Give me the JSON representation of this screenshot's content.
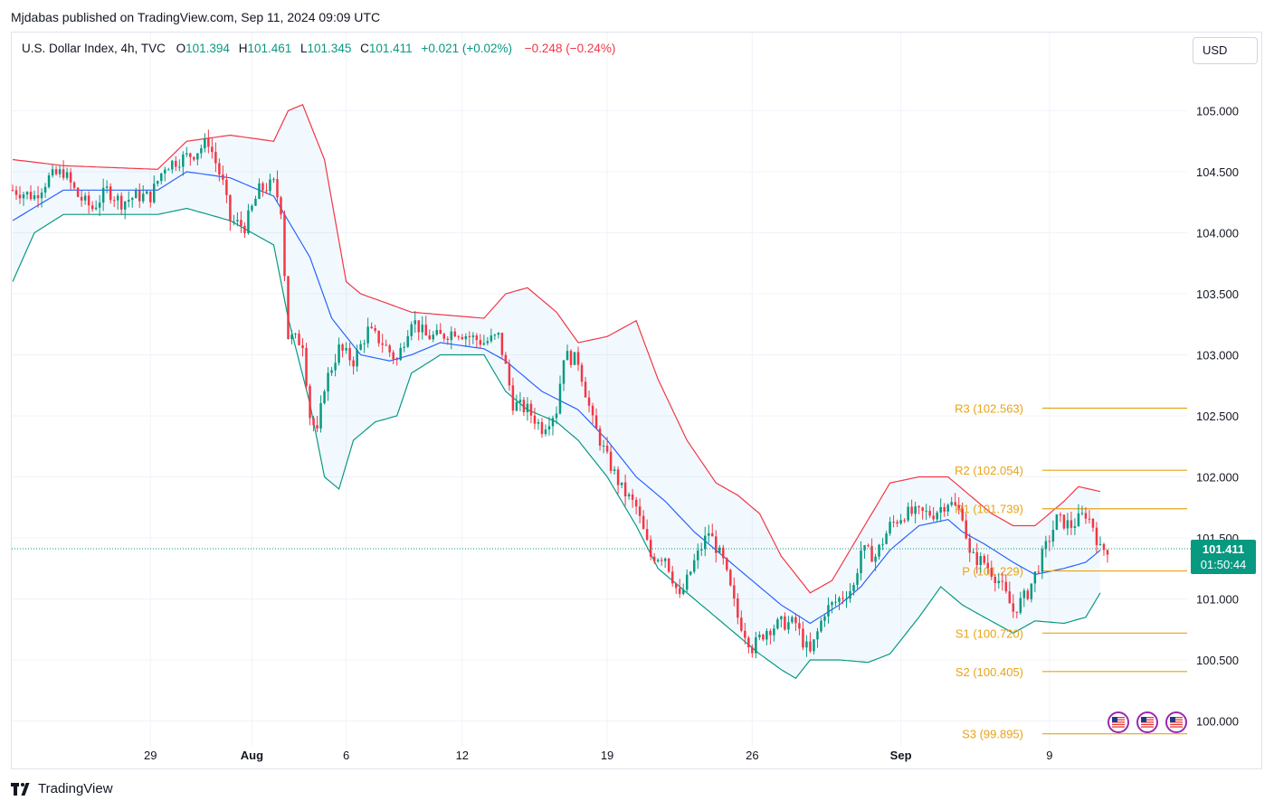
{
  "header": {
    "published_text": "Mjdabas published on TradingView.com, Sep 11, 2024 09:09 UTC"
  },
  "legend": {
    "symbol": "U.S. Dollar Index, 4h, TVC",
    "o_label": "O",
    "o_value": "101.394",
    "h_label": "H",
    "h_value": "101.461",
    "l_label": "L",
    "l_value": "101.345",
    "c_label": "C",
    "c_value": "101.411",
    "change": "+0.021 (+0.02%)",
    "change_from_ref": "−0.248 (−0.24%)"
  },
  "currency_button": "USD",
  "brand": "TradingView",
  "chart_data": {
    "type": "candlestick",
    "interval": "4h",
    "ylim": [
      99.85,
      105.6
    ],
    "y_ticks": [
      100.0,
      100.5,
      101.0,
      101.5,
      102.0,
      102.5,
      103.0,
      103.5,
      104.0,
      104.5,
      105.0
    ],
    "y_tick_labels": [
      "100.000",
      "100.500",
      "101.000",
      "101.500",
      "102.000",
      "102.500",
      "103.000",
      "103.500",
      "104.000",
      "104.500",
      "105.000"
    ],
    "x_ticks": [
      {
        "label": "29",
        "bar": 38
      },
      {
        "label": "Aug",
        "bar": 66
      },
      {
        "label": "6",
        "bar": 92
      },
      {
        "label": "12",
        "bar": 124
      },
      {
        "label": "19",
        "bar": 164
      },
      {
        "label": "26",
        "bar": 204
      },
      {
        "label": "Sep",
        "bar": 245
      },
      {
        "label": "9",
        "bar": 286
      }
    ],
    "bars_total": 306,
    "last_price": {
      "value": 101.411,
      "label": "101.411",
      "countdown": "01:50:44",
      "color": "#089981"
    },
    "up_color": "#089981",
    "down_color": "#f23645",
    "close_path": [
      [
        0,
        104.35
      ],
      [
        6,
        104.3
      ],
      [
        10,
        104.45
      ],
      [
        14,
        104.5
      ],
      [
        18,
        104.3
      ],
      [
        22,
        104.2
      ],
      [
        26,
        104.35
      ],
      [
        30,
        104.25
      ],
      [
        34,
        104.3
      ],
      [
        38,
        104.3
      ],
      [
        42,
        104.55
      ],
      [
        46,
        104.6
      ],
      [
        50,
        104.65
      ],
      [
        54,
        104.75
      ],
      [
        58,
        104.4
      ],
      [
        60,
        104.1
      ],
      [
        64,
        104.05
      ],
      [
        68,
        104.35
      ],
      [
        72,
        104.4
      ],
      [
        74,
        104.2
      ],
      [
        76,
        103.15
      ],
      [
        80,
        103.1
      ],
      [
        82,
        102.5
      ],
      [
        84,
        102.35
      ],
      [
        86,
        102.75
      ],
      [
        90,
        103.05
      ],
      [
        94,
        102.95
      ],
      [
        98,
        103.2
      ],
      [
        102,
        103.1
      ],
      [
        106,
        102.95
      ],
      [
        110,
        103.3
      ],
      [
        114,
        103.15
      ],
      [
        118,
        103.15
      ],
      [
        122,
        103.2
      ],
      [
        126,
        103.15
      ],
      [
        130,
        103.1
      ],
      [
        134,
        103.15
      ],
      [
        136,
        102.9
      ],
      [
        138,
        102.6
      ],
      [
        142,
        102.55
      ],
      [
        146,
        102.4
      ],
      [
        150,
        102.55
      ],
      [
        152,
        103.0
      ],
      [
        156,
        102.95
      ],
      [
        160,
        102.45
      ],
      [
        164,
        102.15
      ],
      [
        168,
        101.9
      ],
      [
        172,
        101.75
      ],
      [
        176,
        101.35
      ],
      [
        180,
        101.35
      ],
      [
        184,
        101.0
      ],
      [
        188,
        101.3
      ],
      [
        192,
        101.55
      ],
      [
        196,
        101.3
      ],
      [
        200,
        100.85
      ],
      [
        204,
        100.6
      ],
      [
        208,
        100.75
      ],
      [
        212,
        100.8
      ],
      [
        216,
        100.8
      ],
      [
        218,
        100.65
      ],
      [
        220,
        100.55
      ],
      [
        224,
        100.9
      ],
      [
        228,
        101.0
      ],
      [
        232,
        101.1
      ],
      [
        234,
        101.4
      ],
      [
        238,
        101.35
      ],
      [
        242,
        101.6
      ],
      [
        246,
        101.7
      ],
      [
        250,
        101.7
      ],
      [
        254,
        101.7
      ],
      [
        258,
        101.8
      ],
      [
        262,
        101.7
      ],
      [
        264,
        101.35
      ],
      [
        268,
        101.3
      ],
      [
        272,
        101.15
      ],
      [
        276,
        100.9
      ],
      [
        280,
        101.05
      ],
      [
        284,
        101.35
      ],
      [
        288,
        101.65
      ],
      [
        292,
        101.6
      ],
      [
        296,
        101.7
      ],
      [
        298,
        101.6
      ],
      [
        300,
        101.4
      ],
      [
        302,
        101.41
      ]
    ],
    "bollinger": {
      "upper": [
        [
          0,
          104.6
        ],
        [
          14,
          104.55
        ],
        [
          40,
          104.52
        ],
        [
          48,
          104.75
        ],
        [
          60,
          104.8
        ],
        [
          72,
          104.75
        ],
        [
          76,
          105.0
        ],
        [
          80,
          105.05
        ],
        [
          86,
          104.6
        ],
        [
          92,
          103.6
        ],
        [
          96,
          103.5
        ],
        [
          110,
          103.35
        ],
        [
          130,
          103.3
        ],
        [
          136,
          103.5
        ],
        [
          142,
          103.55
        ],
        [
          150,
          103.35
        ],
        [
          156,
          103.1
        ],
        [
          164,
          103.15
        ],
        [
          172,
          103.28
        ],
        [
          178,
          102.8
        ],
        [
          186,
          102.3
        ],
        [
          194,
          101.95
        ],
        [
          200,
          101.85
        ],
        [
          206,
          101.7
        ],
        [
          212,
          101.35
        ],
        [
          220,
          101.05
        ],
        [
          226,
          101.15
        ],
        [
          234,
          101.55
        ],
        [
          242,
          101.95
        ],
        [
          250,
          102.0
        ],
        [
          258,
          102.0
        ],
        [
          262,
          101.9
        ],
        [
          266,
          101.8
        ],
        [
          270,
          101.7
        ],
        [
          276,
          101.6
        ],
        [
          282,
          101.6
        ],
        [
          290,
          101.8
        ],
        [
          294,
          101.92
        ],
        [
          300,
          101.88
        ]
      ],
      "middle": [
        [
          0,
          104.1
        ],
        [
          14,
          104.35
        ],
        [
          40,
          104.35
        ],
        [
          48,
          104.5
        ],
        [
          60,
          104.45
        ],
        [
          72,
          104.3
        ],
        [
          76,
          104.1
        ],
        [
          82,
          103.8
        ],
        [
          88,
          103.3
        ],
        [
          96,
          103.0
        ],
        [
          104,
          102.95
        ],
        [
          110,
          103.0
        ],
        [
          118,
          103.1
        ],
        [
          130,
          103.05
        ],
        [
          136,
          102.95
        ],
        [
          146,
          102.7
        ],
        [
          156,
          102.55
        ],
        [
          164,
          102.3
        ],
        [
          172,
          102.0
        ],
        [
          180,
          101.8
        ],
        [
          188,
          101.55
        ],
        [
          196,
          101.35
        ],
        [
          204,
          101.15
        ],
        [
          212,
          100.95
        ],
        [
          220,
          100.8
        ],
        [
          228,
          100.95
        ],
        [
          234,
          101.1
        ],
        [
          242,
          101.4
        ],
        [
          250,
          101.6
        ],
        [
          258,
          101.65
        ],
        [
          262,
          101.55
        ],
        [
          268,
          101.45
        ],
        [
          276,
          101.3
        ],
        [
          282,
          101.2
        ],
        [
          290,
          101.25
        ],
        [
          296,
          101.3
        ],
        [
          300,
          101.4
        ]
      ],
      "lower": [
        [
          0,
          103.6
        ],
        [
          6,
          104.0
        ],
        [
          14,
          104.15
        ],
        [
          40,
          104.15
        ],
        [
          48,
          104.2
        ],
        [
          60,
          104.1
        ],
        [
          72,
          103.9
        ],
        [
          76,
          103.3
        ],
        [
          82,
          102.6
        ],
        [
          86,
          102.0
        ],
        [
          90,
          101.9
        ],
        [
          94,
          102.3
        ],
        [
          100,
          102.45
        ],
        [
          106,
          102.5
        ],
        [
          110,
          102.85
        ],
        [
          118,
          103.0
        ],
        [
          130,
          103.0
        ],
        [
          136,
          102.7
        ],
        [
          142,
          102.55
        ],
        [
          150,
          102.45
        ],
        [
          156,
          102.3
        ],
        [
          164,
          102.0
        ],
        [
          172,
          101.6
        ],
        [
          178,
          101.25
        ],
        [
          186,
          101.05
        ],
        [
          194,
          100.85
        ],
        [
          200,
          100.7
        ],
        [
          206,
          100.55
        ],
        [
          212,
          100.42
        ],
        [
          216,
          100.35
        ],
        [
          220,
          100.5
        ],
        [
          228,
          100.5
        ],
        [
          236,
          100.48
        ],
        [
          242,
          100.55
        ],
        [
          250,
          100.85
        ],
        [
          256,
          101.1
        ],
        [
          262,
          100.95
        ],
        [
          268,
          100.85
        ],
        [
          276,
          100.72
        ],
        [
          282,
          100.82
        ],
        [
          290,
          100.8
        ],
        [
          296,
          100.85
        ],
        [
          300,
          101.05
        ]
      ]
    },
    "pivot_levels": [
      {
        "label": "R3 (102.563)",
        "value": 102.563
      },
      {
        "label": "R2 (102.054)",
        "value": 102.054
      },
      {
        "label": "R1 (101.739)",
        "value": 101.739
      },
      {
        "label": "P (101.229)",
        "value": 101.229
      },
      {
        "label": "S1 (100.720)",
        "value": 100.72
      },
      {
        "label": "S2 (100.405)",
        "value": 100.405
      },
      {
        "label": "S3 (99.895)",
        "value": 99.895
      }
    ],
    "level_color": "#e8a317",
    "event_flags": [
      "us-flag-icon",
      "us-flag-icon",
      "us-flag-icon"
    ]
  }
}
